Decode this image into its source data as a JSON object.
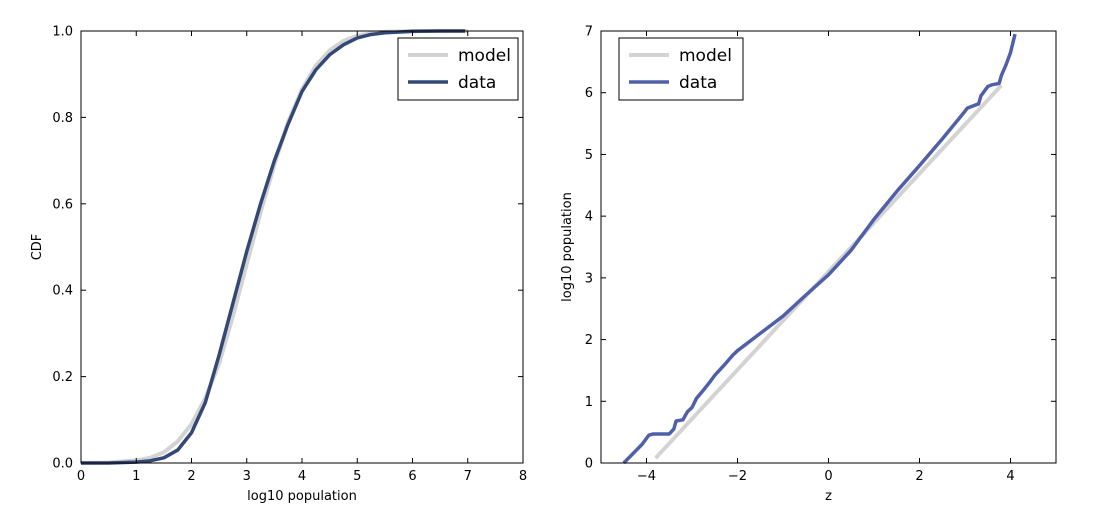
{
  "chart_data": [
    {
      "type": "line",
      "xlabel": "log10 population",
      "ylabel": "CDF",
      "xlim": [
        0,
        8
      ],
      "ylim": [
        0,
        1
      ],
      "xticks": [
        "0",
        "1",
        "2",
        "3",
        "4",
        "5",
        "6",
        "7",
        "8"
      ],
      "yticks": [
        "0.0",
        "0.2",
        "0.4",
        "0.6",
        "0.8",
        "1.0"
      ],
      "grid": false,
      "legend_position": "top-right",
      "series": [
        {
          "name": "model",
          "color": "#d3d3d3",
          "x": [
            0.0,
            0.5,
            1.0,
            1.25,
            1.5,
            1.75,
            2.0,
            2.25,
            2.5,
            2.75,
            3.0,
            3.25,
            3.5,
            3.75,
            4.0,
            4.25,
            4.5,
            4.75,
            5.0,
            5.25,
            5.5,
            6.0,
            6.5,
            7.0
          ],
          "y": [
            0.0,
            0.001,
            0.006,
            0.012,
            0.025,
            0.05,
            0.09,
            0.15,
            0.23,
            0.34,
            0.46,
            0.58,
            0.69,
            0.79,
            0.865,
            0.92,
            0.955,
            0.977,
            0.989,
            0.995,
            0.998,
            1.0,
            1.0,
            1.0
          ]
        },
        {
          "name": "data",
          "color": "#334876",
          "x": [
            0.0,
            0.5,
            1.0,
            1.25,
            1.5,
            1.75,
            2.0,
            2.25,
            2.5,
            2.75,
            3.0,
            3.25,
            3.5,
            3.75,
            4.0,
            4.25,
            4.5,
            4.75,
            5.0,
            5.25,
            5.5,
            6.0,
            6.5,
            6.95
          ],
          "y": [
            0.0,
            0.0,
            0.002,
            0.005,
            0.012,
            0.03,
            0.07,
            0.14,
            0.25,
            0.37,
            0.49,
            0.6,
            0.7,
            0.785,
            0.86,
            0.91,
            0.945,
            0.968,
            0.984,
            0.992,
            0.996,
            0.999,
            1.0,
            1.0
          ]
        }
      ]
    },
    {
      "type": "line",
      "xlabel": "z",
      "ylabel": "log10 population",
      "xlim": [
        -5,
        5
      ],
      "ylim": [
        0,
        7
      ],
      "xticks": [
        "−4",
        "−2",
        "0",
        "2",
        "4"
      ],
      "yticks": [
        "0",
        "1",
        "2",
        "3",
        "4",
        "5",
        "6",
        "7"
      ],
      "grid": false,
      "legend_position": "top-left",
      "series": [
        {
          "name": "model",
          "color": "#d3d3d3",
          "x": [
            -3.8,
            3.8
          ],
          "y": [
            0.08,
            6.12
          ]
        },
        {
          "name": "data",
          "color": "#5060a8",
          "x": [
            -4.5,
            -4.1,
            -3.95,
            -3.85,
            -3.5,
            -3.4,
            -3.35,
            -3.2,
            -3.1,
            -3.0,
            -2.9,
            -2.75,
            -2.6,
            -2.5,
            -2.3,
            -2.1,
            -2.0,
            -1.5,
            -1.0,
            -0.5,
            0.0,
            0.5,
            1.0,
            1.5,
            2.0,
            2.5,
            3.0,
            3.05,
            3.3,
            3.35,
            3.5,
            3.6,
            3.75,
            3.8,
            3.9,
            4.0,
            4.1
          ],
          "y": [
            0.0,
            0.3,
            0.45,
            0.47,
            0.47,
            0.55,
            0.68,
            0.7,
            0.83,
            0.9,
            1.05,
            1.18,
            1.32,
            1.42,
            1.58,
            1.75,
            1.82,
            2.1,
            2.38,
            2.72,
            3.05,
            3.45,
            3.95,
            4.4,
            4.82,
            5.25,
            5.7,
            5.75,
            5.82,
            5.95,
            6.1,
            6.13,
            6.15,
            6.28,
            6.45,
            6.65,
            6.95
          ]
        }
      ]
    }
  ]
}
